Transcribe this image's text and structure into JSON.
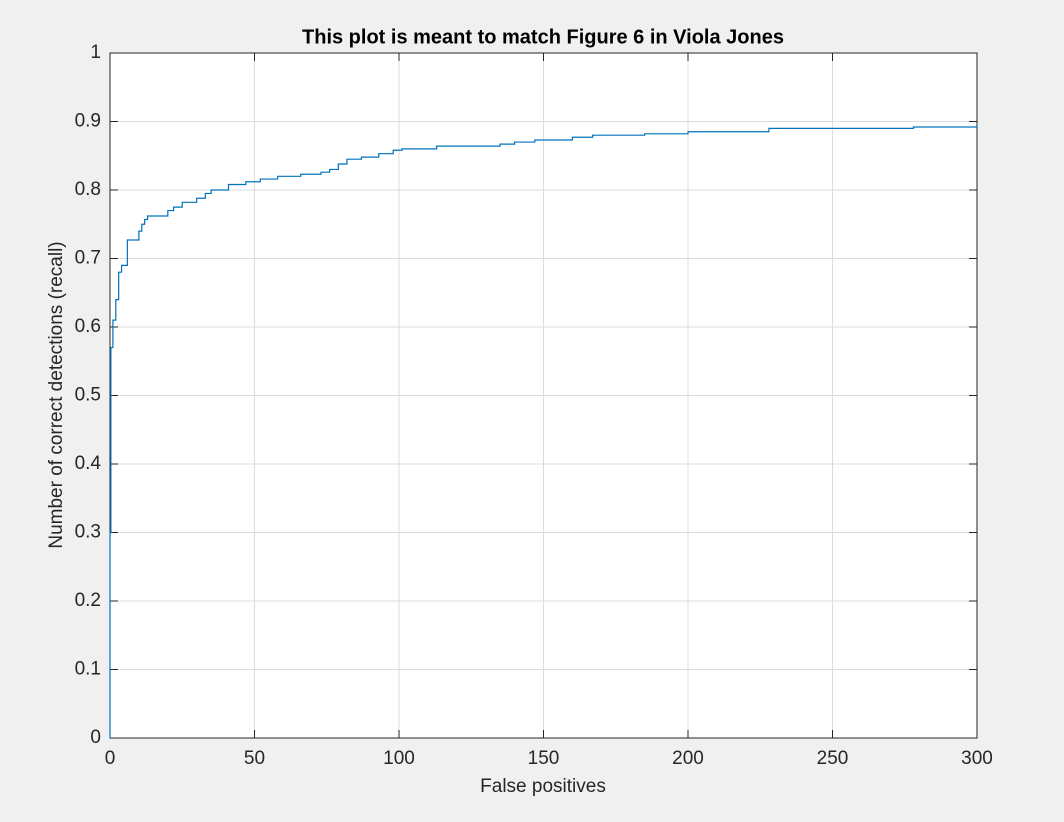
{
  "chart_data": {
    "type": "line",
    "step_points": true,
    "title": "This plot is meant to match Figure 6 in Viola Jones",
    "xlabel": "False positives",
    "ylabel": "Number of correct detections (recall)",
    "x": [
      0,
      0,
      0.3,
      0.3,
      1,
      1,
      2,
      2,
      3,
      3,
      4,
      4,
      6,
      6,
      10,
      10,
      11,
      11,
      12,
      12,
      13,
      13,
      20,
      20,
      22,
      22,
      25,
      25,
      30,
      30,
      33,
      33,
      35,
      35,
      41,
      41,
      47,
      47,
      52,
      52,
      58,
      58,
      66,
      66,
      73,
      73,
      76,
      76,
      79,
      79,
      82,
      82,
      87,
      87,
      93,
      93,
      98,
      98,
      101,
      101,
      113,
      113,
      135,
      135,
      140,
      140,
      147,
      147,
      160,
      160,
      167,
      167,
      185,
      185,
      200,
      200,
      228,
      228,
      278,
      278,
      300,
      300
    ],
    "series": [
      {
        "color": "#0072bd",
        "values": [
          0,
          0.3,
          0.3,
          0.57,
          0.57,
          0.61,
          0.61,
          0.64,
          0.64,
          0.68,
          0.68,
          0.69,
          0.69,
          0.727,
          0.727,
          0.74,
          0.74,
          0.75,
          0.75,
          0.757,
          0.757,
          0.762,
          0.762,
          0.77,
          0.77,
          0.775,
          0.775,
          0.782,
          0.782,
          0.788,
          0.788,
          0.795,
          0.795,
          0.8,
          0.8,
          0.808,
          0.808,
          0.812,
          0.812,
          0.816,
          0.816,
          0.82,
          0.82,
          0.823,
          0.823,
          0.826,
          0.826,
          0.83,
          0.83,
          0.838,
          0.838,
          0.845,
          0.845,
          0.848,
          0.848,
          0.853,
          0.853,
          0.858,
          0.858,
          0.86,
          0.86,
          0.864,
          0.864,
          0.867,
          0.867,
          0.87,
          0.87,
          0.873,
          0.873,
          0.877,
          0.877,
          0.88,
          0.88,
          0.882,
          0.882,
          0.885,
          0.885,
          0.89,
          0.89,
          0.892,
          0.892,
          0.893
        ]
      }
    ],
    "xlim": [
      0,
      300
    ],
    "xticks": [
      0,
      50,
      100,
      150,
      200,
      250,
      300
    ],
    "ylim": [
      0,
      1
    ],
    "yticks": [
      0,
      0.1,
      0.2,
      0.3,
      0.4,
      0.5,
      0.6,
      0.7,
      0.8,
      0.9,
      1
    ],
    "grid": true
  }
}
